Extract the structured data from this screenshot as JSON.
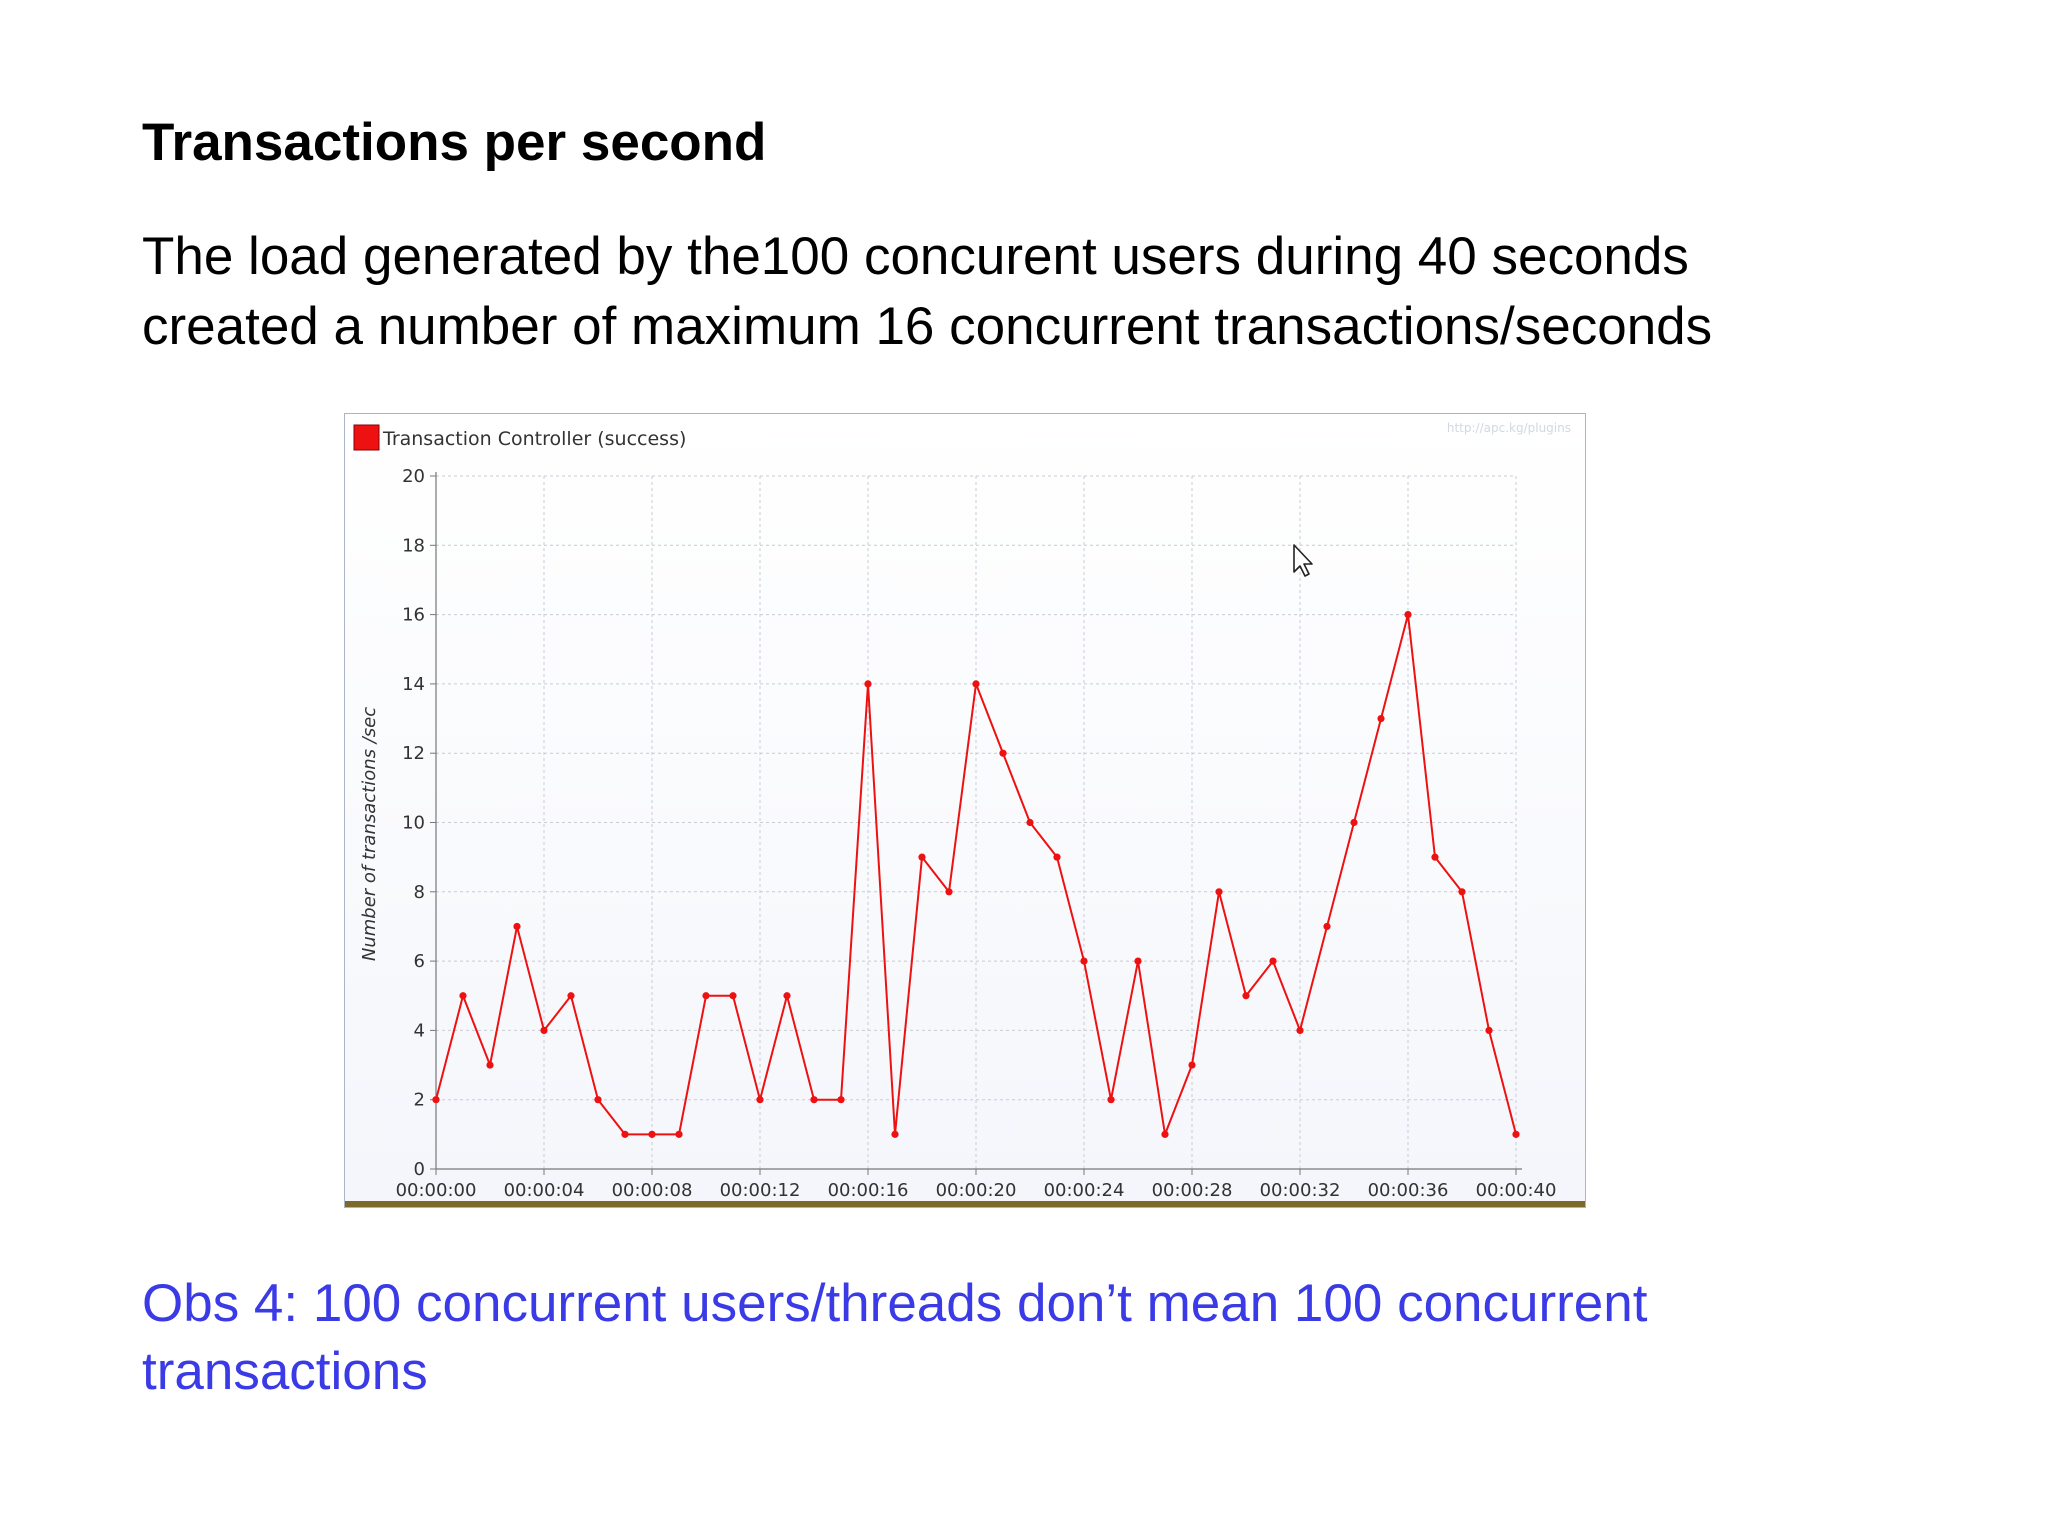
{
  "slide": {
    "title": "Transactions per second",
    "body_lines": [
      "The load generated by the100 concurent users during 40 seconds",
      "created a number of maximum 16 concurrent transactions/seconds"
    ],
    "observation_lines": [
      "Obs 4: 100 concurrent users/threads don’t mean 100 concurrent",
      "transactions"
    ]
  },
  "chart_data": {
    "type": "line",
    "ylabel": "Number of transactions /sec",
    "watermark": "http://apc.kg/plugins",
    "legend": {
      "position": "top-left"
    },
    "grid": true,
    "ylim": [
      0,
      20
    ],
    "yticks": [
      0,
      2,
      4,
      6,
      8,
      10,
      12,
      14,
      16,
      18,
      20
    ],
    "xlim": [
      0,
      40
    ],
    "xticks": [
      {
        "value": 0,
        "label": "00:00:00"
      },
      {
        "value": 4,
        "label": "00:00:04"
      },
      {
        "value": 8,
        "label": "00:00:08"
      },
      {
        "value": 12,
        "label": "00:00:12"
      },
      {
        "value": 16,
        "label": "00:00:16"
      },
      {
        "value": 20,
        "label": "00:00:20"
      },
      {
        "value": 24,
        "label": "00:00:24"
      },
      {
        "value": 28,
        "label": "00:00:28"
      },
      {
        "value": 32,
        "label": "00:00:32"
      },
      {
        "value": 36,
        "label": "00:00:36"
      },
      {
        "value": 40,
        "label": "00:00:40"
      }
    ],
    "series": [
      {
        "name": "Transaction Controller (success)",
        "color": "#ee1111",
        "x": [
          0,
          1,
          2,
          3,
          4,
          5,
          6,
          7,
          8,
          9,
          10,
          11,
          12,
          13,
          14,
          15,
          16,
          17,
          18,
          19,
          20,
          21,
          22,
          23,
          24,
          25,
          26,
          27,
          28,
          29,
          30,
          31,
          32,
          33,
          34,
          35,
          36,
          37,
          38,
          39,
          40
        ],
        "y": [
          2,
          5,
          3,
          7,
          4,
          5,
          2,
          1,
          1,
          1,
          5,
          5,
          2,
          5,
          2,
          2,
          14,
          1,
          9,
          8,
          14,
          12,
          10,
          9,
          6,
          2,
          6,
          1,
          3,
          8,
          5,
          6,
          4,
          7,
          10,
          13,
          16,
          9,
          8,
          4,
          1
        ]
      }
    ]
  }
}
